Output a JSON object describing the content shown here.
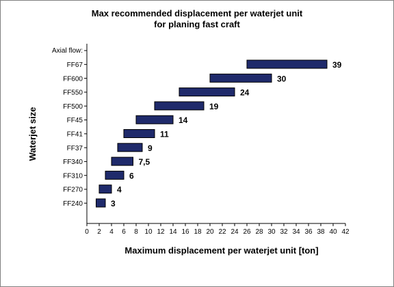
{
  "chart_data": {
    "type": "bar",
    "orientation": "horizontal-floating",
    "title_line1": "Max recommended displacement per waterjet unit",
    "title_line2": "for planing fast craft",
    "xlabel": "Maximum displacement  per waterjet unit [ton]",
    "ylabel": "Waterjet  size",
    "category_header": "Axial flow:",
    "xlim": [
      0,
      42
    ],
    "xticks": [
      0,
      2,
      4,
      6,
      8,
      10,
      12,
      14,
      16,
      18,
      20,
      22,
      24,
      26,
      28,
      30,
      32,
      34,
      36,
      38,
      40,
      42
    ],
    "grid": false,
    "bar_color": "#1f2a6b",
    "categories": [
      "FF67",
      "FF600",
      "FF550",
      "FF500",
      "FF45",
      "FF41",
      "FF37",
      "FF340",
      "FF310",
      "FF270",
      "FF240"
    ],
    "ranges": [
      [
        26,
        39
      ],
      [
        20,
        30
      ],
      [
        15,
        24
      ],
      [
        11,
        19
      ],
      [
        8,
        14
      ],
      [
        6,
        11
      ],
      [
        5,
        9
      ],
      [
        4,
        7.5
      ],
      [
        3,
        6
      ],
      [
        2,
        4
      ],
      [
        1.5,
        3
      ]
    ],
    "labels": [
      "39",
      "30",
      "24",
      "19",
      "14",
      "11",
      "9",
      "7,5",
      "6",
      "4",
      "3"
    ]
  }
}
